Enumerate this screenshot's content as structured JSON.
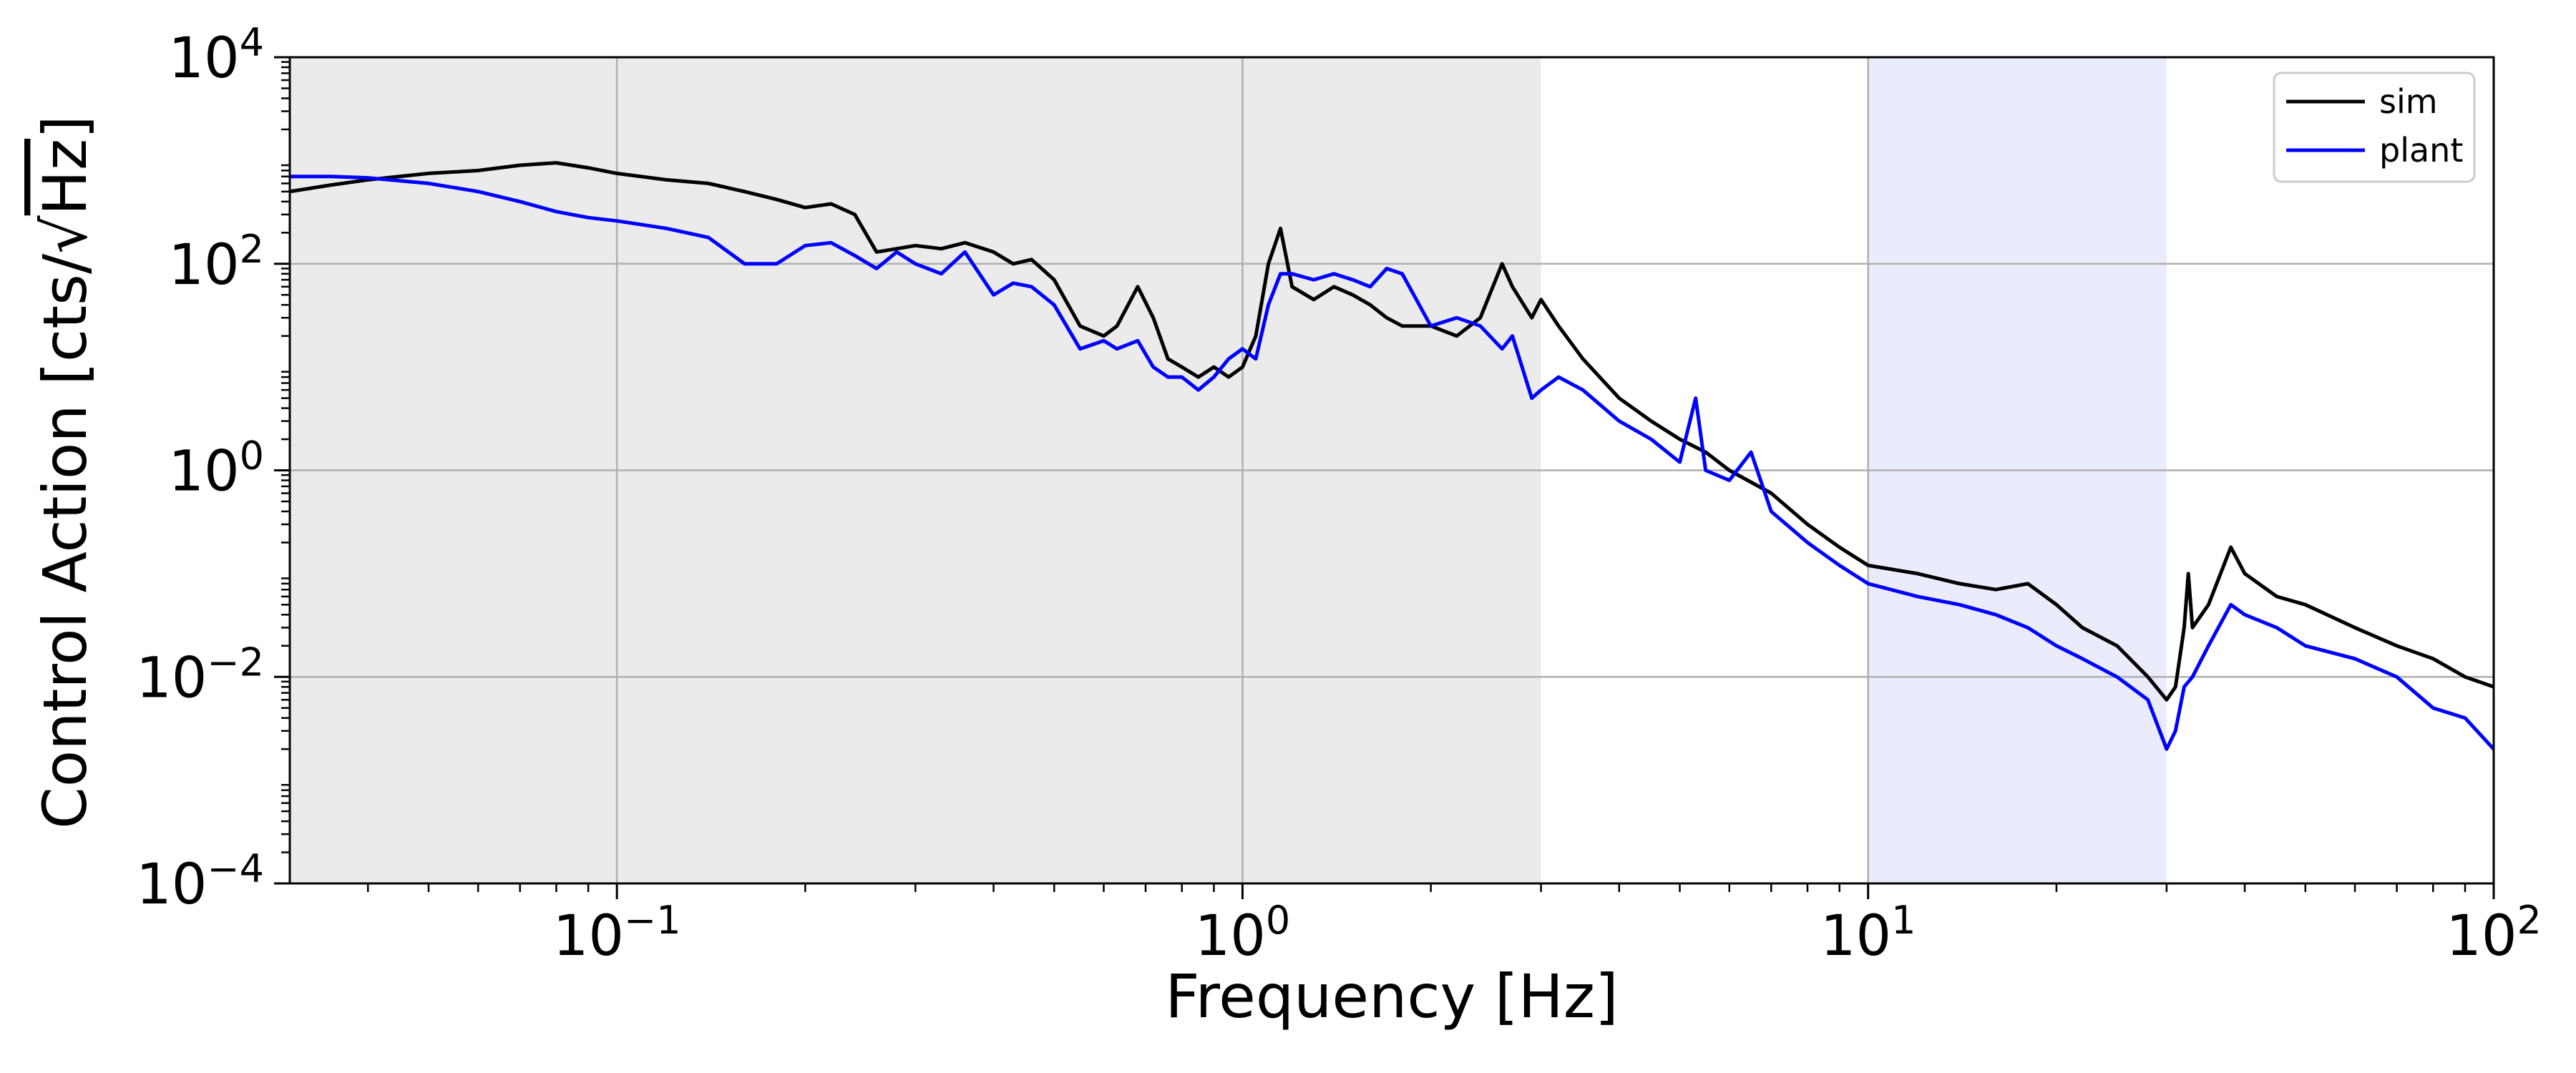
{
  "chart_data": {
    "type": "line",
    "title": "",
    "xlabel": "Frequency [Hz]",
    "ylabel_parts": {
      "prefix": "Control Action [cts/",
      "sqrt": "√",
      "radicand": "Hz",
      "suffix": "]"
    },
    "x_scale": "log",
    "y_scale": "log",
    "xlim": [
      0.03,
      100
    ],
    "ylim": [
      0.0001,
      10000
    ],
    "x_ticks": [
      {
        "base": "10",
        "exp": "−1",
        "value": 0.1
      },
      {
        "base": "10",
        "exp": "0",
        "value": 1
      },
      {
        "base": "10",
        "exp": "1",
        "value": 10
      },
      {
        "base": "10",
        "exp": "2",
        "value": 100
      }
    ],
    "y_ticks": [
      {
        "base": "10",
        "exp": "−4",
        "value": 0.0001
      },
      {
        "base": "10",
        "exp": "−2",
        "value": 0.01
      },
      {
        "base": "10",
        "exp": "0",
        "value": 1
      },
      {
        "base": "10",
        "exp": "2",
        "value": 100
      },
      {
        "base": "10",
        "exp": "4",
        "value": 10000
      }
    ],
    "grid": true,
    "legend_position": "top-right",
    "shaded_regions": [
      {
        "x_range": [
          0.03,
          3
        ],
        "color": "#ebebeb"
      },
      {
        "x_range": [
          10,
          30
        ],
        "color": "#eaecfb"
      }
    ],
    "series": [
      {
        "name": "sim",
        "color": "#000000",
        "points": [
          [
            0.03,
            500
          ],
          [
            0.035,
            580
          ],
          [
            0.04,
            650
          ],
          [
            0.05,
            750
          ],
          [
            0.06,
            800
          ],
          [
            0.07,
            900
          ],
          [
            0.08,
            950
          ],
          [
            0.09,
            850
          ],
          [
            0.1,
            750
          ],
          [
            0.12,
            650
          ],
          [
            0.14,
            600
          ],
          [
            0.16,
            500
          ],
          [
            0.18,
            420
          ],
          [
            0.2,
            350
          ],
          [
            0.22,
            380
          ],
          [
            0.24,
            300
          ],
          [
            0.26,
            130
          ],
          [
            0.28,
            140
          ],
          [
            0.3,
            150
          ],
          [
            0.33,
            140
          ],
          [
            0.36,
            160
          ],
          [
            0.4,
            130
          ],
          [
            0.43,
            100
          ],
          [
            0.46,
            110
          ],
          [
            0.5,
            70
          ],
          [
            0.55,
            25
          ],
          [
            0.6,
            20
          ],
          [
            0.63,
            25
          ],
          [
            0.68,
            60
          ],
          [
            0.72,
            30
          ],
          [
            0.76,
            12
          ],
          [
            0.8,
            10
          ],
          [
            0.85,
            8
          ],
          [
            0.9,
            10
          ],
          [
            0.95,
            8
          ],
          [
            1.0,
            10
          ],
          [
            1.05,
            20
          ],
          [
            1.1,
            100
          ],
          [
            1.15,
            220
          ],
          [
            1.2,
            60
          ],
          [
            1.3,
            45
          ],
          [
            1.4,
            60
          ],
          [
            1.5,
            50
          ],
          [
            1.6,
            40
          ],
          [
            1.7,
            30
          ],
          [
            1.8,
            25
          ],
          [
            2.0,
            25
          ],
          [
            2.2,
            20
          ],
          [
            2.4,
            30
          ],
          [
            2.6,
            100
          ],
          [
            2.7,
            60
          ],
          [
            2.9,
            30
          ],
          [
            3.0,
            45
          ],
          [
            3.2,
            25
          ],
          [
            3.5,
            12
          ],
          [
            4.0,
            5
          ],
          [
            4.5,
            3
          ],
          [
            5.0,
            2
          ],
          [
            5.5,
            1.5
          ],
          [
            6.0,
            1.0
          ],
          [
            7.0,
            0.6
          ],
          [
            8.0,
            0.3
          ],
          [
            9.0,
            0.18
          ],
          [
            10,
            0.12
          ],
          [
            12,
            0.1
          ],
          [
            14,
            0.08
          ],
          [
            16,
            0.07
          ],
          [
            18,
            0.08
          ],
          [
            20,
            0.05
          ],
          [
            22,
            0.03
          ],
          [
            25,
            0.02
          ],
          [
            28,
            0.01
          ],
          [
            30,
            0.006
          ],
          [
            31,
            0.008
          ],
          [
            32,
            0.03
          ],
          [
            32.5,
            0.1
          ],
          [
            33,
            0.03
          ],
          [
            35,
            0.05
          ],
          [
            38,
            0.18
          ],
          [
            40,
            0.1
          ],
          [
            45,
            0.06
          ],
          [
            50,
            0.05
          ],
          [
            60,
            0.03
          ],
          [
            70,
            0.02
          ],
          [
            80,
            0.015
          ],
          [
            90,
            0.01
          ],
          [
            100,
            0.008
          ]
        ]
      },
      {
        "name": "plant",
        "color": "#0000ff",
        "points": [
          [
            0.03,
            700
          ],
          [
            0.035,
            700
          ],
          [
            0.04,
            680
          ],
          [
            0.05,
            600
          ],
          [
            0.06,
            500
          ],
          [
            0.07,
            400
          ],
          [
            0.08,
            320
          ],
          [
            0.09,
            280
          ],
          [
            0.1,
            260
          ],
          [
            0.12,
            220
          ],
          [
            0.14,
            180
          ],
          [
            0.16,
            100
          ],
          [
            0.18,
            100
          ],
          [
            0.2,
            150
          ],
          [
            0.22,
            160
          ],
          [
            0.24,
            120
          ],
          [
            0.26,
            90
          ],
          [
            0.28,
            130
          ],
          [
            0.3,
            100
          ],
          [
            0.33,
            80
          ],
          [
            0.36,
            130
          ],
          [
            0.4,
            50
          ],
          [
            0.43,
            65
          ],
          [
            0.46,
            60
          ],
          [
            0.5,
            40
          ],
          [
            0.55,
            15
          ],
          [
            0.6,
            18
          ],
          [
            0.63,
            15
          ],
          [
            0.68,
            18
          ],
          [
            0.72,
            10
          ],
          [
            0.76,
            8
          ],
          [
            0.8,
            8
          ],
          [
            0.85,
            6
          ],
          [
            0.9,
            8
          ],
          [
            0.95,
            12
          ],
          [
            1.0,
            15
          ],
          [
            1.05,
            12
          ],
          [
            1.1,
            40
          ],
          [
            1.15,
            80
          ],
          [
            1.2,
            80
          ],
          [
            1.3,
            70
          ],
          [
            1.4,
            80
          ],
          [
            1.5,
            70
          ],
          [
            1.6,
            60
          ],
          [
            1.7,
            90
          ],
          [
            1.8,
            80
          ],
          [
            2.0,
            25
          ],
          [
            2.2,
            30
          ],
          [
            2.4,
            25
          ],
          [
            2.6,
            15
          ],
          [
            2.7,
            20
          ],
          [
            2.9,
            5
          ],
          [
            3.0,
            6
          ],
          [
            3.2,
            8
          ],
          [
            3.5,
            6
          ],
          [
            4.0,
            3
          ],
          [
            4.5,
            2
          ],
          [
            5.0,
            1.2
          ],
          [
            5.3,
            5
          ],
          [
            5.5,
            1.0
          ],
          [
            6.0,
            0.8
          ],
          [
            6.5,
            1.5
          ],
          [
            7.0,
            0.4
          ],
          [
            8.0,
            0.2
          ],
          [
            9.0,
            0.12
          ],
          [
            10,
            0.08
          ],
          [
            12,
            0.06
          ],
          [
            14,
            0.05
          ],
          [
            16,
            0.04
          ],
          [
            18,
            0.03
          ],
          [
            20,
            0.02
          ],
          [
            22,
            0.015
          ],
          [
            25,
            0.01
          ],
          [
            28,
            0.006
          ],
          [
            30,
            0.002
          ],
          [
            31,
            0.003
          ],
          [
            32,
            0.008
          ],
          [
            33,
            0.01
          ],
          [
            35,
            0.02
          ],
          [
            38,
            0.05
          ],
          [
            40,
            0.04
          ],
          [
            45,
            0.03
          ],
          [
            50,
            0.02
          ],
          [
            60,
            0.015
          ],
          [
            70,
            0.01
          ],
          [
            80,
            0.005
          ],
          [
            90,
            0.004
          ],
          [
            100,
            0.002
          ]
        ]
      }
    ]
  }
}
